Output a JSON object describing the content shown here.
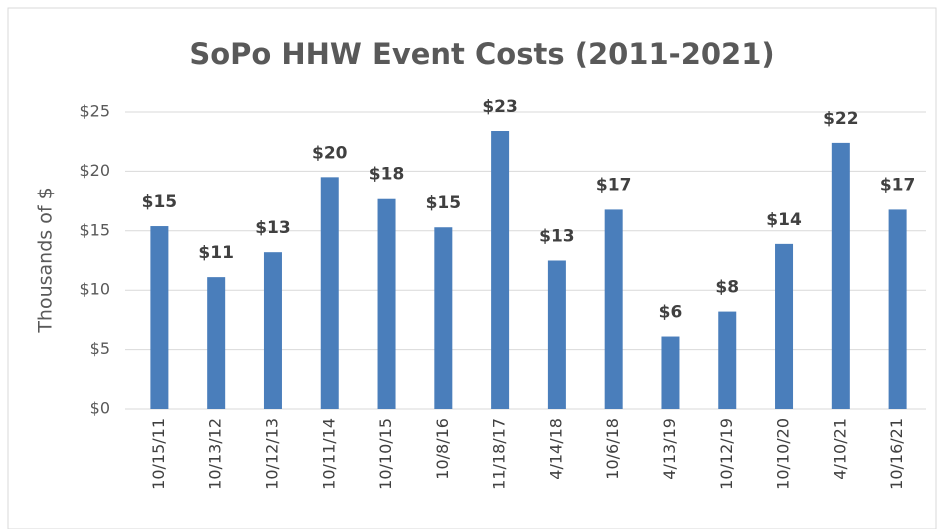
{
  "chart_data": {
    "type": "bar",
    "title": "SoPo HHW Event Costs (2011-2021)",
    "y_label": "Thousands of $",
    "categories": [
      "10/15/11",
      "10/13/12",
      "10/12/13",
      "10/11/14",
      "10/10/15",
      "10/8/16",
      "11/18/17",
      "4/14/18",
      "10/6/18",
      "4/13/19",
      "10/12/19",
      "10/10/20",
      "4/10/21",
      "10/16/21"
    ],
    "values": [
      15.4,
      11.1,
      13.2,
      19.5,
      17.7,
      15.3,
      23.4,
      12.5,
      16.8,
      6.1,
      8.2,
      13.9,
      22.4,
      16.8
    ],
    "value_labels": [
      "$15",
      "$11",
      "$13",
      "$20",
      "$18",
      "$15",
      "$23",
      "$13",
      "$17",
      "$6",
      "$8",
      "$14",
      "$22",
      "$17"
    ],
    "color": "#4a7ebb",
    "ylim": [
      0,
      25
    ],
    "yticks": [
      {
        "value": 0,
        "label": "$0"
      },
      {
        "value": 5,
        "label": "$5"
      },
      {
        "value": 10,
        "label": "$10"
      },
      {
        "value": 15,
        "label": "$15"
      },
      {
        "value": 20,
        "label": "$20"
      },
      {
        "value": 25,
        "label": "$25"
      }
    ],
    "grid": true
  }
}
